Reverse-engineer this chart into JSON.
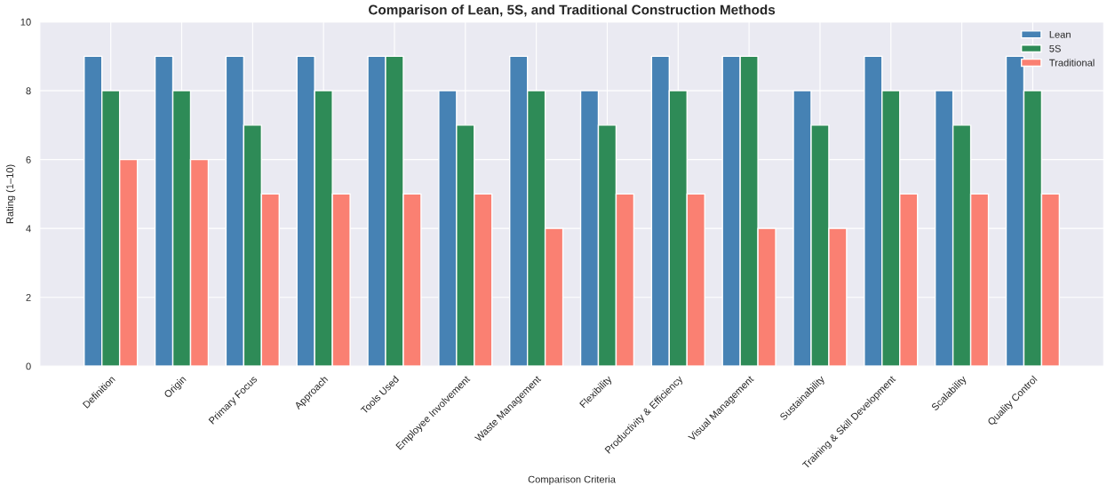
{
  "chart_data": {
    "type": "bar",
    "title": "Comparison of Lean, 5S, and Traditional Construction Methods",
    "xlabel": "Comparison Criteria",
    "ylabel": "Rating (1–10)",
    "categories": [
      "Definition",
      "Origin",
      "Primary Focus",
      "Approach",
      "Tools Used",
      "Employee Involvement",
      "Waste Management",
      "Flexibility",
      "Productivity & Efficiency",
      "Visual Management",
      "Sustainability",
      "Training & Skill Development",
      "Scalability",
      "Quality Control"
    ],
    "series": [
      {
        "name": "Lean",
        "color": "#4682b4",
        "values": [
          9,
          9,
          9,
          9,
          9,
          8,
          9,
          8,
          9,
          9,
          8,
          9,
          8,
          9
        ]
      },
      {
        "name": "5S",
        "color": "#2e8b57",
        "values": [
          8,
          8,
          7,
          8,
          9,
          7,
          8,
          7,
          8,
          9,
          7,
          8,
          7,
          8
        ]
      },
      {
        "name": "Traditional",
        "color": "#fa8072",
        "values": [
          6,
          6,
          5,
          5,
          5,
          5,
          4,
          5,
          5,
          4,
          4,
          5,
          5,
          5
        ]
      }
    ],
    "ylim": [
      0,
      10
    ],
    "yticks": [
      0,
      2,
      4,
      6,
      8,
      10
    ],
    "grid": true,
    "legend": "top right"
  }
}
